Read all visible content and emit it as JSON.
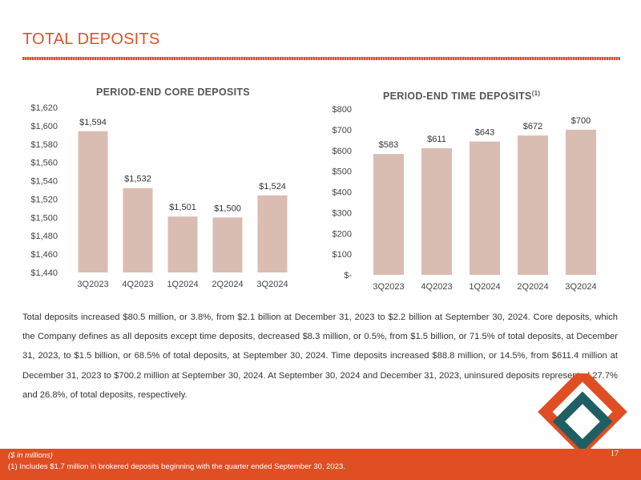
{
  "page": {
    "title": "TOTAL DEPOSITS",
    "page_number": "17",
    "body_text": "Total deposits increased $80.5 million, or 3.8%, from $2.1 billion at December 31, 2023 to $2.2 billion at September 30, 2024. Core deposits, which the Company defines as all deposits except time deposits, decreased $8.3 million, or 0.5%, from $1.5 billion, or 71.5% of total deposits, at December 31, 2023, to $1.5 billion, or 68.5% of total deposits, at September 30, 2024. Time deposits increased $88.8 million, or 14.5%, from $611.4 million at December 31, 2023 to $700.2 million at September 30, 2024. At September 30, 2024 and December 31, 2023, uninsured deposits represented 27.7% and 26.8%, of total deposits, respectively.",
    "footnote_units": "($ in millions)",
    "footnote_1": "(1) Includes $1.7 million in brokered deposits beginning with the quarter ended September 30, 2023.",
    "colors": {
      "accent": "#d9532b",
      "footer": "#e04e24",
      "bar": "#d9bdb3",
      "logo_orange": "#e04e24",
      "logo_teal": "#1f5f63"
    },
    "logo_icon": "diamond-logo-icon"
  },
  "chart_data": [
    {
      "type": "bar",
      "title": "PERIOD-END CORE DEPOSITS",
      "title_superscript": "",
      "categories": [
        "3Q2023",
        "4Q2023",
        "1Q2024",
        "2Q2024",
        "3Q2024"
      ],
      "values": [
        1594,
        1532,
        1501,
        1500,
        1524
      ],
      "value_labels": [
        "$1,594",
        "$1,532",
        "$1,501",
        "$1,500",
        "$1,524"
      ],
      "ylim": [
        1440,
        1620
      ],
      "yticks": [
        1440,
        1460,
        1480,
        1500,
        1520,
        1540,
        1560,
        1580,
        1600,
        1620
      ],
      "ytick_labels": [
        "$1,440",
        "$1,460",
        "$1,480",
        "$1,500",
        "$1,520",
        "$1,540",
        "$1,560",
        "$1,580",
        "$1,600",
        "$1,620"
      ],
      "xlabel": "",
      "ylabel": "",
      "grid": false
    },
    {
      "type": "bar",
      "title": "PERIOD-END TIME DEPOSITS",
      "title_superscript": "(1)",
      "categories": [
        "3Q2023",
        "4Q2023",
        "1Q2024",
        "2Q2024",
        "3Q2024"
      ],
      "values": [
        583,
        611,
        643,
        672,
        700
      ],
      "value_labels": [
        "$583",
        "$611",
        "$643",
        "$672",
        "$700"
      ],
      "ylim": [
        0,
        800
      ],
      "yticks": [
        0,
        100,
        200,
        300,
        400,
        500,
        600,
        700,
        800
      ],
      "ytick_labels": [
        "$-",
        "$100",
        "$200",
        "$300",
        "$400",
        "$500",
        "$600",
        "$700",
        "$800"
      ],
      "xlabel": "",
      "ylabel": "",
      "grid": false
    }
  ]
}
